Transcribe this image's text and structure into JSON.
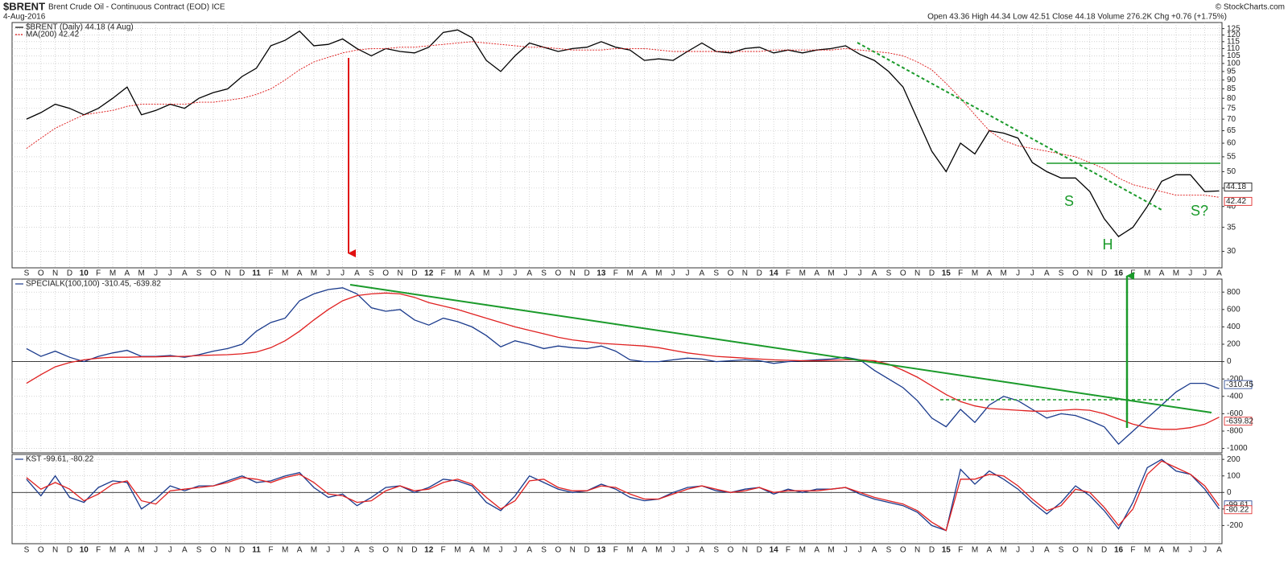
{
  "header": {
    "symbol": "$BRENT",
    "name": "Brent Crude Oil - Continuous Contract (EOD) ICE",
    "date": "4-Aug-2016",
    "quote": "Open 43.36 High 44.34 Low 42.51 Close 44.18 Volume 276.2K Chg +0.76 (+1.75%)",
    "copyright": "© StockCharts.com"
  },
  "chart_data": [
    {
      "type": "line",
      "log_scale": true,
      "grid": true,
      "categories": [
        "S",
        "O",
        "N",
        "D",
        "10",
        "F",
        "M",
        "A",
        "M",
        "J",
        "J",
        "A",
        "S",
        "O",
        "N",
        "D",
        "11",
        "F",
        "M",
        "A",
        "M",
        "J",
        "J",
        "A",
        "S",
        "O",
        "N",
        "D",
        "12",
        "F",
        "M",
        "A",
        "M",
        "J",
        "J",
        "A",
        "S",
        "O",
        "N",
        "D",
        "13",
        "F",
        "M",
        "A",
        "M",
        "J",
        "J",
        "A",
        "S",
        "O",
        "N",
        "D",
        "14",
        "F",
        "M",
        "A",
        "M",
        "J",
        "J",
        "A",
        "S",
        "O",
        "N",
        "D",
        "15",
        "F",
        "M",
        "A",
        "M",
        "J",
        "J",
        "A",
        "S",
        "O",
        "N",
        "D",
        "16",
        "F",
        "M",
        "A",
        "M",
        "J",
        "J",
        "A"
      ],
      "ylim": [
        27,
        130
      ],
      "yticks": [
        125,
        120,
        115,
        110,
        105,
        100,
        95,
        90,
        85,
        80,
        75,
        70,
        65,
        60,
        55,
        50,
        45,
        40,
        35,
        30
      ],
      "annotations": [
        "S",
        "H",
        "S?"
      ],
      "series": [
        {
          "name": "$BRENT (Daily) 44.18 (4 Aug)",
          "color": "#000000",
          "values": [
            70,
            73,
            77,
            75,
            72,
            75,
            80,
            86,
            72,
            74,
            77,
            75,
            80,
            83,
            85,
            92,
            97,
            112,
            116,
            123,
            112,
            113,
            117,
            110,
            105,
            110,
            108,
            107,
            111,
            122,
            124,
            118,
            102,
            95,
            105,
            114,
            111,
            108,
            110,
            111,
            115,
            111,
            109,
            102,
            103,
            102,
            108,
            114,
            108,
            107,
            110,
            111,
            107,
            109,
            107,
            109,
            110,
            112,
            106,
            102,
            95,
            86,
            70,
            57,
            50,
            60,
            56,
            65,
            64,
            62,
            53,
            50,
            48,
            48,
            44,
            37,
            33,
            35,
            40,
            47,
            49,
            49,
            44,
            44.18
          ]
        },
        {
          "name": "MA(200) 42.42",
          "color": "#dd1111",
          "dashed": true,
          "values": [
            58,
            62,
            66,
            69,
            72,
            73,
            74,
            76,
            77,
            77,
            77,
            77,
            78,
            78,
            79,
            80,
            82,
            85,
            90,
            96,
            101,
            104,
            107,
            109,
            110,
            110,
            111,
            111,
            112,
            113,
            114,
            115,
            114,
            113,
            112,
            111,
            111,
            110,
            109,
            109,
            109,
            110,
            110,
            110,
            109,
            108,
            108,
            108,
            108,
            108,
            108,
            108,
            109,
            109,
            109,
            109,
            109,
            110,
            109,
            108,
            107,
            105,
            101,
            96,
            88,
            80,
            72,
            65,
            61,
            59,
            58,
            57,
            56,
            55,
            53,
            51,
            48,
            46,
            45,
            44,
            43,
            43,
            43,
            42.42
          ]
        }
      ]
    },
    {
      "type": "line",
      "grid": true,
      "legend": "SPECIALK(100,100) -310.45, -639.82",
      "ylim": [
        -1050,
        950
      ],
      "yticks": [
        800,
        600,
        400,
        200,
        0,
        -200,
        -400,
        -600,
        -800,
        -1000
      ],
      "series": [
        {
          "color": "#1a3a8c",
          "values": [
            150,
            60,
            120,
            50,
            0,
            60,
            100,
            130,
            60,
            60,
            70,
            50,
            80,
            120,
            150,
            200,
            350,
            450,
            500,
            700,
            780,
            830,
            850,
            780,
            620,
            580,
            600,
            480,
            420,
            500,
            460,
            400,
            300,
            170,
            240,
            200,
            150,
            180,
            160,
            150,
            180,
            120,
            20,
            0,
            0,
            20,
            40,
            30,
            0,
            10,
            20,
            10,
            -20,
            0,
            10,
            20,
            30,
            50,
            20,
            -100,
            -200,
            -300,
            -450,
            -650,
            -750,
            -550,
            -700,
            -500,
            -400,
            -450,
            -550,
            -650,
            -600,
            -620,
            -680,
            -750,
            -950,
            -800,
            -650,
            -500,
            -350,
            -250,
            -250,
            -310.45
          ]
        },
        {
          "color": "#e02020",
          "values": [
            -250,
            -150,
            -60,
            -10,
            20,
            40,
            50,
            50,
            55,
            55,
            60,
            60,
            70,
            75,
            80,
            90,
            110,
            160,
            240,
            350,
            480,
            600,
            700,
            760,
            780,
            790,
            780,
            740,
            680,
            640,
            600,
            550,
            500,
            450,
            400,
            360,
            320,
            280,
            250,
            230,
            210,
            200,
            190,
            180,
            160,
            130,
            100,
            80,
            60,
            50,
            40,
            30,
            20,
            15,
            10,
            10,
            15,
            20,
            20,
            10,
            -30,
            -100,
            -180,
            -280,
            -380,
            -460,
            -510,
            -540,
            -550,
            -560,
            -570,
            -570,
            -560,
            -550,
            -560,
            -600,
            -660,
            -720,
            -760,
            -780,
            -780,
            -760,
            -720,
            -639.82
          ]
        }
      ]
    },
    {
      "type": "line",
      "grid": true,
      "legend": "KST -99.61, -80.22",
      "categories": [
        "S",
        "O",
        "N",
        "D",
        "10",
        "F",
        "M",
        "A",
        "M",
        "J",
        "J",
        "A",
        "S",
        "O",
        "N",
        "D",
        "11",
        "F",
        "M",
        "A",
        "M",
        "J",
        "J",
        "A",
        "S",
        "O",
        "N",
        "D",
        "12",
        "F",
        "M",
        "A",
        "M",
        "J",
        "J",
        "A",
        "S",
        "O",
        "N",
        "D",
        "13",
        "F",
        "M",
        "A",
        "M",
        "J",
        "J",
        "A",
        "S",
        "O",
        "N",
        "D",
        "14",
        "F",
        "M",
        "A",
        "M",
        "J",
        "J",
        "A",
        "S",
        "O",
        "N",
        "D",
        "15",
        "F",
        "M",
        "A",
        "M",
        "J",
        "J",
        "A",
        "S",
        "O",
        "N",
        "D",
        "16",
        "F",
        "M",
        "A",
        "M",
        "J",
        "J",
        "A"
      ],
      "ylim": [
        -310,
        230
      ],
      "yticks": [
        200,
        100,
        0,
        -100,
        -200
      ],
      "series": [
        {
          "color": "#1a3a8c",
          "values": [
            80,
            -20,
            100,
            -30,
            -60,
            30,
            70,
            60,
            -100,
            -40,
            40,
            10,
            40,
            40,
            70,
            100,
            60,
            70,
            100,
            120,
            30,
            -30,
            -10,
            -80,
            -30,
            30,
            40,
            0,
            30,
            80,
            70,
            40,
            -60,
            -110,
            -20,
            100,
            60,
            20,
            0,
            10,
            50,
            20,
            -30,
            -50,
            -40,
            0,
            30,
            40,
            10,
            0,
            20,
            30,
            -10,
            20,
            0,
            20,
            20,
            30,
            -10,
            -40,
            -60,
            -80,
            -120,
            -200,
            -230,
            140,
            50,
            130,
            80,
            20,
            -60,
            -130,
            -60,
            40,
            -20,
            -110,
            -220,
            -60,
            150,
            200,
            130,
            110,
            20,
            -99.61
          ]
        },
        {
          "color": "#e02020",
          "values": [
            90,
            20,
            60,
            20,
            -50,
            -10,
            50,
            70,
            -50,
            -70,
            10,
            20,
            30,
            40,
            60,
            90,
            80,
            60,
            90,
            110,
            60,
            -10,
            -20,
            -60,
            -50,
            10,
            40,
            10,
            20,
            60,
            80,
            50,
            -30,
            -100,
            -50,
            70,
            80,
            30,
            10,
            10,
            40,
            30,
            -10,
            -40,
            -40,
            -10,
            20,
            40,
            20,
            0,
            10,
            30,
            0,
            10,
            10,
            10,
            20,
            30,
            0,
            -30,
            -50,
            -70,
            -110,
            -180,
            -230,
            80,
            80,
            110,
            100,
            40,
            -40,
            -110,
            -80,
            20,
            0,
            -90,
            -200,
            -100,
            110,
            190,
            150,
            110,
            40,
            -80.22
          ]
        }
      ]
    }
  ]
}
